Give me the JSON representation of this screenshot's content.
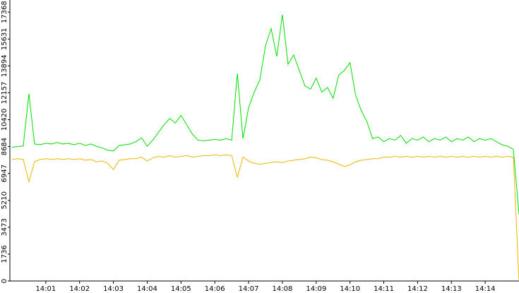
{
  "chart_data": {
    "type": "line",
    "categories": [
      null,
      null,
      null,
      null,
      null,
      null,
      "14:01",
      null,
      null,
      null,
      null,
      null,
      "14:02",
      null,
      null,
      null,
      null,
      null,
      "14:03",
      null,
      null,
      null,
      null,
      null,
      "14:04",
      null,
      null,
      null,
      null,
      null,
      "14:05",
      null,
      null,
      null,
      null,
      null,
      "14:06",
      null,
      null,
      null,
      null,
      null,
      "14:07",
      null,
      null,
      null,
      null,
      null,
      "14:08",
      null,
      null,
      null,
      null,
      null,
      "14:09",
      null,
      null,
      null,
      null,
      null,
      "14:10",
      null,
      null,
      null,
      null,
      null,
      "14:11",
      null,
      null,
      null,
      null,
      null,
      "14:12",
      null,
      null,
      null,
      null,
      null,
      "14:13",
      null,
      null,
      null,
      null,
      null,
      "14:14",
      null,
      null,
      null,
      null,
      null,
      null
    ],
    "series": [
      {
        "color": "#00dd00",
        "values": [
          8640,
          8680,
          8720,
          12100,
          8850,
          8800,
          8900,
          8850,
          8950,
          8850,
          8900,
          8800,
          8900,
          8750,
          8850,
          8700,
          8600,
          8450,
          8400,
          8750,
          8800,
          8850,
          9000,
          9250,
          8700,
          9100,
          9600,
          10100,
          10500,
          10200,
          10700,
          10100,
          9500,
          9100,
          9050,
          9100,
          9150,
          9100,
          9200,
          9100,
          13400,
          9200,
          11200,
          12200,
          13000,
          15200,
          16300,
          14500,
          17200,
          14000,
          14600,
          13600,
          12600,
          12400,
          13100,
          12200,
          12500,
          11800,
          13300,
          13600,
          14100,
          12000,
          11000,
          10300,
          9200,
          9300,
          9000,
          9200,
          9100,
          9400,
          8900,
          9200,
          9100,
          9300,
          9000,
          9200,
          9100,
          9300,
          9000,
          9200,
          9100,
          9300,
          9000,
          9200,
          9100,
          9200,
          9000,
          8800,
          8700,
          8500,
          4300
        ]
      },
      {
        "color": "#e8b800",
        "values": [
          7850,
          7900,
          7850,
          6400,
          7700,
          7850,
          7900,
          7850,
          7900,
          7850,
          7900,
          7850,
          7900,
          7800,
          7850,
          7700,
          7750,
          7600,
          7200,
          7800,
          7850,
          7900,
          7900,
          8000,
          7750,
          7950,
          8050,
          8000,
          8100,
          8000,
          8050,
          8100,
          8000,
          8050,
          8100,
          8100,
          8150,
          8100,
          8150,
          8100,
          6700,
          8000,
          7750,
          7600,
          7550,
          7600,
          7650,
          7700,
          7650,
          7750,
          7800,
          7850,
          7900,
          8000,
          7950,
          7850,
          7800,
          7700,
          7550,
          7400,
          7500,
          7700,
          7800,
          7850,
          7900,
          7900,
          8000,
          8000,
          8050,
          8000,
          8050,
          8000,
          8050,
          8000,
          8050,
          8000,
          8050,
          8000,
          8050,
          8000,
          8050,
          8000,
          8050,
          8000,
          8050,
          8000,
          8050,
          8000,
          8050,
          8000,
          0
        ]
      }
    ],
    "ylim": [
      0,
      18150
    ],
    "yticks": [
      0,
      1736,
      3473,
      5210,
      6947,
      8684,
      10420,
      12157,
      13894,
      15631,
      17368
    ],
    "grid": false
  }
}
